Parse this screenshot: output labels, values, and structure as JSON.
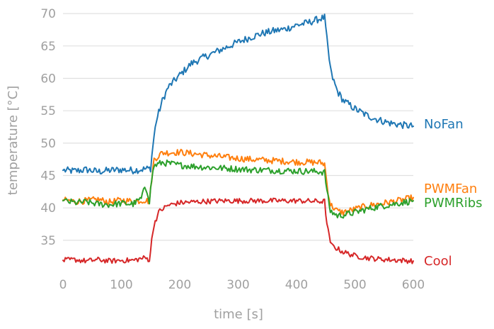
{
  "chart_data": {
    "type": "line",
    "xlabel": "time [s]",
    "ylabel": "temperature [°C]",
    "xlim": [
      0,
      600
    ],
    "ylim": [
      30.5,
      71
    ],
    "xticks": [
      0,
      100,
      200,
      300,
      400,
      500,
      600
    ],
    "yticks": [
      35,
      40,
      45,
      50,
      55,
      60,
      65,
      70
    ],
    "grid": "horizontal",
    "legend": "inline labels at right end of each line",
    "series": [
      {
        "name": "NoFan",
        "color": "#1f77b4",
        "x": [
          0,
          20,
          40,
          60,
          80,
          100,
          120,
          140,
          150,
          155,
          160,
          170,
          180,
          200,
          220,
          240,
          260,
          280,
          300,
          320,
          340,
          360,
          380,
          400,
          420,
          440,
          448,
          452,
          455,
          460,
          470,
          480,
          500,
          520,
          540,
          560,
          580,
          600
        ],
        "values": [
          45.8,
          45.7,
          45.9,
          45.6,
          45.8,
          45.9,
          45.8,
          46.0,
          46.1,
          50.5,
          53.5,
          56.5,
          58.6,
          60.5,
          62.3,
          63.2,
          64.0,
          64.8,
          65.6,
          66.3,
          66.9,
          67.3,
          67.6,
          68.2,
          68.6,
          69.2,
          69.4,
          66.0,
          63.5,
          60.5,
          58.0,
          56.6,
          55.3,
          54.3,
          53.6,
          53.1,
          52.8,
          52.6
        ]
      },
      {
        "name": "PWMFan",
        "color": "#ff7f0e",
        "x": [
          0,
          20,
          40,
          60,
          80,
          100,
          120,
          140,
          148,
          152,
          156,
          170,
          200,
          240,
          280,
          320,
          360,
          400,
          440,
          448,
          453,
          458,
          470,
          480,
          500,
          520,
          540,
          560,
          580,
          600
        ],
        "values": [
          41.2,
          41.0,
          41.1,
          41.3,
          40.9,
          41.2,
          41.0,
          41.2,
          41.0,
          44.5,
          47.5,
          48.5,
          48.6,
          48.2,
          47.8,
          47.5,
          47.3,
          47.1,
          47.0,
          46.8,
          43.0,
          40.5,
          39.5,
          39.3,
          39.8,
          40.3,
          40.6,
          40.9,
          41.2,
          41.6
        ]
      },
      {
        "name": "PWMRibs",
        "color": "#2ca02c",
        "x": [
          0,
          20,
          40,
          60,
          80,
          100,
          120,
          135,
          140,
          145,
          148,
          152,
          156,
          170,
          200,
          240,
          280,
          320,
          360,
          400,
          440,
          448,
          453,
          458,
          470,
          480,
          500,
          520,
          540,
          560,
          580,
          600
        ],
        "values": [
          41.1,
          40.8,
          40.9,
          40.6,
          40.5,
          40.7,
          40.6,
          41.5,
          43.3,
          42.5,
          41.0,
          44.5,
          46.5,
          47.0,
          46.6,
          46.3,
          46.1,
          45.9,
          45.8,
          45.7,
          45.6,
          45.5,
          42.0,
          39.5,
          38.8,
          38.9,
          39.3,
          39.8,
          40.2,
          40.5,
          40.8,
          41.1
        ]
      },
      {
        "name": "Cool",
        "color": "#d62728",
        "x": [
          0,
          20,
          40,
          60,
          80,
          100,
          120,
          140,
          148,
          152,
          156,
          165,
          180,
          200,
          240,
          280,
          320,
          360,
          400,
          440,
          448,
          452,
          456,
          460,
          480,
          500,
          520,
          540,
          560,
          580,
          600
        ],
        "values": [
          31.9,
          32.0,
          31.8,
          32.0,
          31.8,
          31.9,
          31.9,
          32.3,
          32.0,
          35.0,
          37.5,
          39.5,
          40.4,
          40.8,
          41.0,
          41.1,
          41.1,
          41.1,
          41.1,
          41.0,
          41.0,
          37.5,
          35.5,
          34.2,
          33.2,
          32.6,
          32.3,
          32.1,
          32.0,
          31.9,
          31.8
        ]
      }
    ]
  }
}
